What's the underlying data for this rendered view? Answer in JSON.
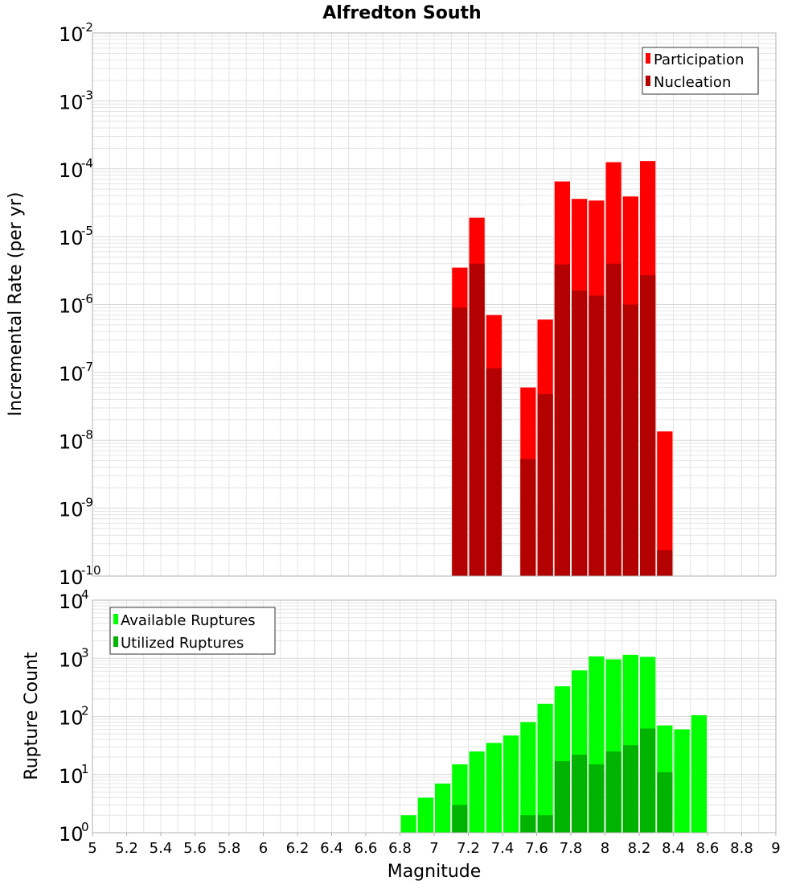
{
  "title": "Alfredton South",
  "colors": {
    "participation": "#ff0000",
    "nucleation": "#b30000",
    "available": "#00ff00",
    "utilized": "#00b300",
    "grid": "#e4e4e4",
    "frame": "#b0b0b0"
  },
  "chart_data": [
    {
      "type": "bar",
      "name": "rate-panel",
      "ylabel": "Incremental Rate (per yr)",
      "yscale": "log",
      "ylim_exp": [
        -10,
        -2
      ],
      "ytick_exps": [
        "-10",
        "-9",
        "-8",
        "-7",
        "-6",
        "-5",
        "-4",
        "-3",
        "-2"
      ],
      "xlim": [
        5,
        9
      ],
      "legend": {
        "position": "top-right",
        "entries": [
          "Participation",
          "Nucleation"
        ]
      },
      "bin_width": 0.1,
      "series": [
        {
          "name": "Participation",
          "x": [
            7.15,
            7.25,
            7.35,
            7.55,
            7.65,
            7.75,
            7.85,
            7.95,
            8.05,
            8.15,
            8.25,
            8.35
          ],
          "values": [
            3.5e-06,
            1.9e-05,
            7e-07,
            6e-08,
            6e-07,
            6.5e-05,
            3.6e-05,
            3.4e-05,
            0.000125,
            3.9e-05,
            0.00013,
            1.35e-08
          ]
        },
        {
          "name": "Nucleation",
          "x": [
            7.15,
            7.25,
            7.35,
            7.55,
            7.65,
            7.75,
            7.85,
            7.95,
            8.05,
            8.15,
            8.25,
            8.35
          ],
          "values": [
            9e-07,
            4e-06,
            1.15e-07,
            5.3e-09,
            4.8e-08,
            3.9e-06,
            1.6e-06,
            1.35e-06,
            4e-06,
            1e-06,
            2.7e-06,
            2.4e-10
          ]
        }
      ]
    },
    {
      "type": "bar",
      "name": "count-panel",
      "xlabel": "Magnitude",
      "ylabel": "Rupture Count",
      "yscale": "log",
      "ylim_exp": [
        0,
        4
      ],
      "ytick_exps": [
        "0",
        "1",
        "2",
        "3",
        "4"
      ],
      "xlim": [
        5,
        9
      ],
      "xticks": [
        "5",
        "5.2",
        "5.4",
        "5.6",
        "5.8",
        "6",
        "6.2",
        "6.4",
        "6.6",
        "6.8",
        "7",
        "7.2",
        "7.4",
        "7.6",
        "7.8",
        "8",
        "8.2",
        "8.4",
        "8.6",
        "8.8",
        "9"
      ],
      "legend": {
        "position": "top-left",
        "entries": [
          "Available Ruptures",
          "Utilized Ruptures"
        ]
      },
      "bin_width": 0.1,
      "series": [
        {
          "name": "Available Ruptures",
          "x": [
            6.55,
            6.75,
            6.85,
            6.95,
            7.05,
            7.15,
            7.25,
            7.35,
            7.45,
            7.55,
            7.65,
            7.75,
            7.85,
            7.95,
            8.05,
            8.15,
            8.25,
            8.35,
            8.45,
            8.55
          ],
          "values": [
            1,
            1,
            2,
            4,
            7,
            15,
            25,
            35,
            47,
            80,
            165,
            330,
            620,
            1080,
            960,
            1150,
            1060,
            70,
            60,
            105
          ]
        },
        {
          "name": "Utilized Ruptures",
          "x": [
            7.15,
            7.25,
            7.35,
            7.45,
            7.55,
            7.65,
            7.75,
            7.85,
            7.95,
            8.05,
            8.15,
            8.25,
            8.35
          ],
          "values": [
            3,
            1,
            1,
            1,
            2,
            2,
            17,
            22,
            15,
            25,
            32,
            62,
            11
          ]
        }
      ]
    }
  ]
}
